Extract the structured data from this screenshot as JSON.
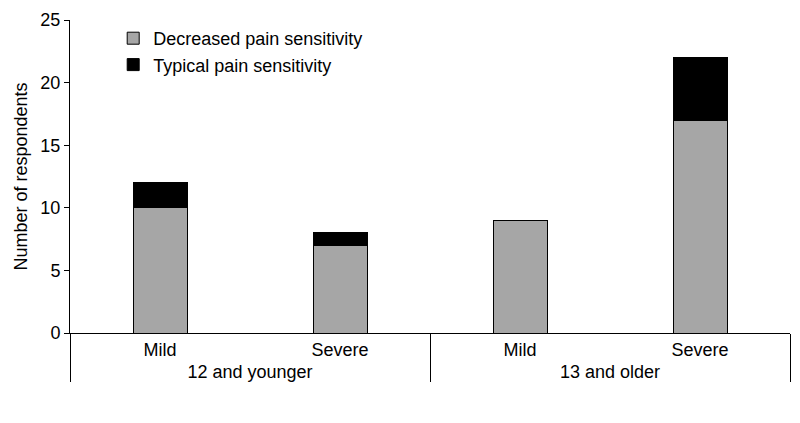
{
  "chart_data": {
    "type": "bar",
    "stacked": true,
    "categories": [
      "Mild",
      "Severe",
      "Mild",
      "Severe"
    ],
    "category_groups": [
      "12 and younger",
      "12 and younger",
      "13 and older",
      "13 and older"
    ],
    "y_label": "Number of respondents",
    "series": [
      {
        "name": "Decreased pain sensitivity",
        "color": "#a6a6a6",
        "values": [
          10,
          7,
          9,
          17
        ]
      },
      {
        "name": "Typical pain sensitivity",
        "color": "#000000",
        "values": [
          2,
          1,
          0,
          5
        ]
      }
    ],
    "ylim": [
      0,
      25
    ],
    "yticks": [
      0,
      5,
      10,
      15,
      20,
      25
    ],
    "grid": false,
    "legend": "upper left"
  }
}
